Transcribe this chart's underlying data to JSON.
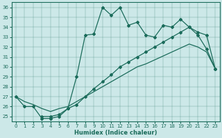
{
  "background_color": "#cce8e8",
  "line_color": "#1a6b5a",
  "xlabel": "Humidex (Indice chaleur)",
  "xlim": [
    -0.5,
    23.5
  ],
  "ylim": [
    24.5,
    36.5
  ],
  "yticks": [
    25,
    26,
    27,
    28,
    29,
    30,
    31,
    32,
    33,
    34,
    35,
    36
  ],
  "xticks": [
    0,
    1,
    2,
    3,
    4,
    5,
    6,
    7,
    8,
    9,
    10,
    11,
    12,
    13,
    14,
    15,
    16,
    17,
    18,
    19,
    20,
    21,
    22,
    23
  ],
  "line1_x": [
    0,
    1,
    2,
    3,
    4,
    5,
    6,
    7,
    8,
    9,
    10,
    11,
    12,
    13,
    14,
    15,
    16,
    17,
    18,
    19,
    20,
    21,
    22,
    23
  ],
  "line1_y": [
    27.0,
    26.0,
    26.0,
    24.8,
    24.8,
    25.0,
    25.8,
    29.0,
    33.2,
    33.3,
    36.0,
    35.2,
    36.0,
    34.2,
    34.5,
    33.2,
    33.0,
    34.2,
    34.0,
    34.8,
    34.0,
    33.2,
    31.8,
    29.8
  ],
  "line2_x": [
    3,
    4,
    5,
    6,
    7,
    8,
    9,
    10,
    11,
    12,
    13,
    14,
    15,
    16,
    17,
    18,
    19,
    20,
    21,
    22,
    23
  ],
  "line2_y": [
    25.0,
    25.0,
    25.2,
    25.8,
    26.2,
    27.0,
    27.8,
    28.5,
    29.2,
    30.0,
    30.5,
    31.0,
    31.5,
    32.0,
    32.5,
    33.0,
    33.5,
    34.0,
    33.5,
    33.2,
    29.8
  ],
  "line3_x": [
    0,
    1,
    2,
    3,
    4,
    5,
    6,
    7,
    8,
    9,
    10,
    11,
    12,
    13,
    14,
    15,
    16,
    17,
    18,
    19,
    20,
    21,
    22,
    23
  ],
  "line3_y": [
    27.0,
    26.5,
    26.2,
    25.8,
    25.5,
    25.8,
    26.0,
    26.5,
    27.0,
    27.5,
    28.0,
    28.5,
    29.0,
    29.5,
    30.0,
    30.3,
    30.7,
    31.1,
    31.5,
    31.9,
    32.3,
    32.0,
    31.5,
    29.8
  ],
  "marker": "D",
  "markersize": 2.0,
  "linewidth": 0.9,
  "tick_fontsize": 5.0,
  "xlabel_fontsize": 6.0
}
